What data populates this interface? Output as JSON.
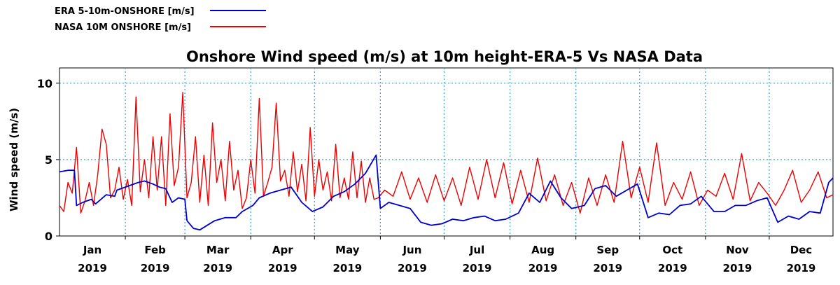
{
  "chart_data": {
    "type": "line",
    "title": "Onshore Wind speed (m/s) at 10m height-ERA-5 Vs NASA Data",
    "xlabel": "",
    "ylabel": "Wind speed (m/s)",
    "ylim": [
      0,
      11
    ],
    "yticks": [
      0,
      5,
      10
    ],
    "xlim": [
      "2019-01-01",
      "2019-12-31"
    ],
    "months": [
      {
        "month": "Jan",
        "year": "2019"
      },
      {
        "month": "Feb",
        "year": "2019"
      },
      {
        "month": "Mar",
        "year": "2019"
      },
      {
        "month": "Apr",
        "year": "2019"
      },
      {
        "month": "May",
        "year": "2019"
      },
      {
        "month": "Jun",
        "year": "2019"
      },
      {
        "month": "Jul",
        "year": "2019"
      },
      {
        "month": "Aug",
        "year": "2019"
      },
      {
        "month": "Sep",
        "year": "2019"
      },
      {
        "month": "Oct",
        "year": "2019"
      },
      {
        "month": "Nov",
        "year": "2019"
      },
      {
        "month": "Dec",
        "year": "2019"
      }
    ],
    "grid": true,
    "legend_position": "top-left",
    "series": [
      {
        "name": "ERA 5-10m-ONSHORE [m/s]",
        "color": "#0000cc",
        "x": [
          "2019-01-01",
          "2019-01-05",
          "2019-01-08",
          "2019-01-09",
          "2019-01-12",
          "2019-01-16",
          "2019-01-18",
          "2019-01-23",
          "2019-01-27",
          "2019-01-28",
          "2019-02-03",
          "2019-02-07",
          "2019-02-10",
          "2019-02-14",
          "2019-02-17",
          "2019-02-20",
          "2019-02-23",
          "2019-02-26",
          "2019-03-01",
          "2019-03-02",
          "2019-03-05",
          "2019-03-08",
          "2019-03-15",
          "2019-03-20",
          "2019-03-25",
          "2019-03-28",
          "2019-04-02",
          "2019-04-05",
          "2019-04-10",
          "2019-04-15",
          "2019-04-20",
          "2019-04-25",
          "2019-04-30",
          "2019-05-05",
          "2019-05-10",
          "2019-05-15",
          "2019-05-20",
          "2019-05-25",
          "2019-05-30",
          "2019-06-01",
          "2019-06-05",
          "2019-06-10",
          "2019-06-15",
          "2019-06-20",
          "2019-06-25",
          "2019-06-30",
          "2019-07-05",
          "2019-07-10",
          "2019-07-15",
          "2019-07-20",
          "2019-07-25",
          "2019-07-30",
          "2019-08-05",
          "2019-08-10",
          "2019-08-15",
          "2019-08-20",
          "2019-08-25",
          "2019-08-30",
          "2019-09-05",
          "2019-09-10",
          "2019-09-15",
          "2019-09-20",
          "2019-09-25",
          "2019-09-30",
          "2019-10-05",
          "2019-10-10",
          "2019-10-15",
          "2019-10-20",
          "2019-10-25",
          "2019-10-30",
          "2019-11-05",
          "2019-11-10",
          "2019-11-15",
          "2019-11-20",
          "2019-11-25",
          "2019-11-30",
          "2019-12-05",
          "2019-12-10",
          "2019-12-15",
          "2019-12-20",
          "2019-12-25",
          "2019-12-29",
          "2019-12-31"
        ],
        "y": [
          4.2,
          4.3,
          4.3,
          2.0,
          2.2,
          2.4,
          2.1,
          2.7,
          2.6,
          3.0,
          3.3,
          3.5,
          3.6,
          3.4,
          3.2,
          3.1,
          2.2,
          2.5,
          2.4,
          1.0,
          0.5,
          0.4,
          1.0,
          1.2,
          1.2,
          1.6,
          2.0,
          2.5,
          2.8,
          3.0,
          3.2,
          2.2,
          1.6,
          1.9,
          2.6,
          2.9,
          3.4,
          4.1,
          5.3,
          1.8,
          2.2,
          2.0,
          1.8,
          0.9,
          0.7,
          0.8,
          1.1,
          1.0,
          1.2,
          1.3,
          1.0,
          1.1,
          1.5,
          2.8,
          2.2,
          3.6,
          2.5,
          1.8,
          2.0,
          3.1,
          3.3,
          2.6,
          3.0,
          3.4,
          1.2,
          1.5,
          1.4,
          2.0,
          2.1,
          2.6,
          1.6,
          1.6,
          2.0,
          2.0,
          2.3,
          2.5,
          0.9,
          1.3,
          1.1,
          1.6,
          1.5,
          3.5,
          3.8
        ]
      },
      {
        "name": "NASA 10M ONSHORE  [m/s]",
        "color": "#ee0000",
        "x": [
          "2019-01-01",
          "2019-01-03",
          "2019-01-05",
          "2019-01-07",
          "2019-01-09",
          "2019-01-11",
          "2019-01-13",
          "2019-01-15",
          "2019-01-17",
          "2019-01-19",
          "2019-01-21",
          "2019-01-23",
          "2019-01-25",
          "2019-01-27",
          "2019-01-29",
          "2019-01-31",
          "2019-02-02",
          "2019-02-04",
          "2019-02-06",
          "2019-02-08",
          "2019-02-10",
          "2019-02-12",
          "2019-02-14",
          "2019-02-16",
          "2019-02-18",
          "2019-02-20",
          "2019-02-22",
          "2019-02-24",
          "2019-02-26",
          "2019-02-28",
          "2019-03-02",
          "2019-03-04",
          "2019-03-06",
          "2019-03-08",
          "2019-03-10",
          "2019-03-12",
          "2019-03-14",
          "2019-03-16",
          "2019-03-18",
          "2019-03-20",
          "2019-03-22",
          "2019-03-24",
          "2019-03-26",
          "2019-03-28",
          "2019-03-30",
          "2019-04-01",
          "2019-04-03",
          "2019-04-05",
          "2019-04-07",
          "2019-04-09",
          "2019-04-11",
          "2019-04-13",
          "2019-04-15",
          "2019-04-17",
          "2019-04-19",
          "2019-04-21",
          "2019-04-23",
          "2019-04-25",
          "2019-04-27",
          "2019-04-29",
          "2019-05-01",
          "2019-05-03",
          "2019-05-05",
          "2019-05-07",
          "2019-05-09",
          "2019-05-11",
          "2019-05-13",
          "2019-05-15",
          "2019-05-17",
          "2019-05-19",
          "2019-05-21",
          "2019-05-23",
          "2019-05-25",
          "2019-05-27",
          "2019-05-29",
          "2019-05-31",
          "2019-06-03",
          "2019-06-07",
          "2019-06-11",
          "2019-06-15",
          "2019-06-19",
          "2019-06-23",
          "2019-06-27",
          "2019-07-01",
          "2019-07-05",
          "2019-07-09",
          "2019-07-13",
          "2019-07-17",
          "2019-07-21",
          "2019-07-25",
          "2019-07-29",
          "2019-08-02",
          "2019-08-06",
          "2019-08-10",
          "2019-08-14",
          "2019-08-18",
          "2019-08-22",
          "2019-08-26",
          "2019-08-30",
          "2019-09-03",
          "2019-09-07",
          "2019-09-11",
          "2019-09-15",
          "2019-09-19",
          "2019-09-23",
          "2019-09-27",
          "2019-10-01",
          "2019-10-05",
          "2019-10-09",
          "2019-10-13",
          "2019-10-17",
          "2019-10-21",
          "2019-10-25",
          "2019-10-29",
          "2019-11-02",
          "2019-11-06",
          "2019-11-10",
          "2019-11-14",
          "2019-11-18",
          "2019-11-22",
          "2019-11-26",
          "2019-11-30",
          "2019-12-04",
          "2019-12-08",
          "2019-12-12",
          "2019-12-16",
          "2019-12-20",
          "2019-12-24",
          "2019-12-28",
          "2019-12-31"
        ],
        "y": [
          2.0,
          1.6,
          3.5,
          2.8,
          5.8,
          1.5,
          2.3,
          3.5,
          2.0,
          4.0,
          7.0,
          6.0,
          2.5,
          3.0,
          4.5,
          2.4,
          3.7,
          2.0,
          9.1,
          2.9,
          5.0,
          2.5,
          6.5,
          3.0,
          6.5,
          2.0,
          8.0,
          3.3,
          4.5,
          9.4,
          2.5,
          3.5,
          6.5,
          2.2,
          5.3,
          2.0,
          7.4,
          3.5,
          5.0,
          2.3,
          6.2,
          3.0,
          4.3,
          1.8,
          2.5,
          5.0,
          2.8,
          9.0,
          2.6,
          3.5,
          4.5,
          8.7,
          3.6,
          4.3,
          2.6,
          5.5,
          2.9,
          4.7,
          2.3,
          7.1,
          2.6,
          5.0,
          3.0,
          4.2,
          2.3,
          6.0,
          2.5,
          3.8,
          2.4,
          5.5,
          2.5,
          4.9,
          2.2,
          3.8,
          2.4,
          2.5,
          3.0,
          2.6,
          4.2,
          2.4,
          3.8,
          2.2,
          4.0,
          2.3,
          3.8,
          2.0,
          4.5,
          2.4,
          5.0,
          2.5,
          4.8,
          2.1,
          4.3,
          2.2,
          5.1,
          2.3,
          4.0,
          2.0,
          3.5,
          1.5,
          3.8,
          2.0,
          4.0,
          2.2,
          6.2,
          2.5,
          4.5,
          2.2,
          6.1,
          2.0,
          3.5,
          2.4,
          4.2,
          2.0,
          3.0,
          2.6,
          4.1,
          2.4,
          5.4,
          2.3,
          3.5,
          2.8,
          2.0,
          3.0,
          4.3,
          2.2,
          3.0,
          4.2,
          2.5,
          2.7
        ]
      }
    ]
  }
}
